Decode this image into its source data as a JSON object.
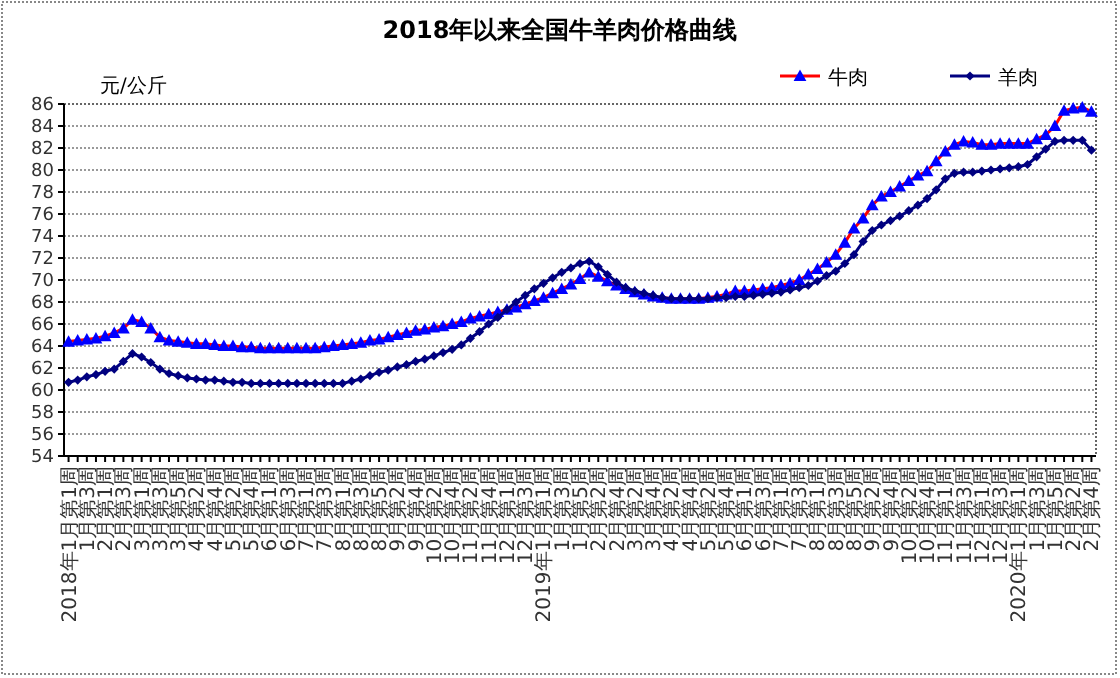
{
  "chart_data": {
    "type": "line",
    "title": "2018年以来全国牛羊肉价格曲线",
    "ylabel": "元/公斤",
    "categories": [
      "2018年1月第1周",
      null,
      "1月第3周",
      null,
      "2月第1周",
      null,
      "2月第3周",
      null,
      "3月第1周",
      null,
      "3月第3周",
      null,
      "3月第5周",
      null,
      "4月第2周",
      null,
      "4月第4周",
      null,
      "5月第2周",
      null,
      "5月第4周",
      null,
      "6月第1周",
      null,
      "6月第3周",
      null,
      "7月第1周",
      null,
      "7月第3周",
      null,
      "8月第1周",
      null,
      "8月第3周",
      null,
      "8月第5周",
      null,
      "9月第2周",
      null,
      "9月第4周",
      null,
      "10月第2周",
      null,
      "10月第4周",
      null,
      "11月第2周",
      null,
      "11月第4周",
      null,
      "12月第1周",
      null,
      "12月第3周",
      null,
      "2019年1月第1周",
      null,
      "1月第3周",
      null,
      "1月第5周",
      null,
      "2月第2周",
      null,
      "2月第4周",
      null,
      "3月第2周",
      null,
      "3月第4周",
      null,
      "4月第2周",
      null,
      "4月第4周",
      null,
      "5月第2周",
      null,
      "5月第4周",
      null,
      "6月第1周",
      null,
      "6月第3周",
      null,
      "7月第1周",
      null,
      "7月第3周",
      null,
      "8月第1周",
      null,
      "8月第3周",
      null,
      "8月第5周",
      null,
      "9月第2周",
      null,
      "9月第4周",
      null,
      "10月第2周",
      null,
      "10月第4周",
      null,
      "11月第1周",
      null,
      "11月第3周",
      null,
      "12月第1周",
      null,
      "12月第3周",
      null,
      "2020年1月第1周",
      null,
      "1月第3周",
      null,
      "1月第5周",
      null,
      "2月第2周",
      null,
      "2月第4周"
    ],
    "ylim": [
      54,
      86
    ],
    "yticks": [
      54,
      56,
      58,
      60,
      62,
      64,
      66,
      68,
      70,
      72,
      74,
      76,
      78,
      80,
      82,
      84,
      86
    ],
    "grid": "y",
    "legend": "top right",
    "line_style": "solid",
    "series": [
      {
        "name": "牛肉",
        "color": "#ff0000",
        "marker": "triangle",
        "colors": [
          "#0000ff",
          "#0000ff",
          "#0000ff",
          "#0000ff",
          "#0000ff",
          "#0000ff",
          "#0000ff",
          "#0000ff",
          "#0000ff",
          "#0000ff",
          "#0000ff",
          "#0000ff",
          "#0000ff",
          "#0000ff",
          "#0000ff",
          "#0000ff",
          "#0000ff",
          "#0000ff",
          "#0000ff",
          "#0000ff",
          "#0000ff",
          "#0000ff",
          "#0000ff",
          "#0000ff",
          "#0000ff",
          "#0000ff",
          "#0000ff",
          "#0000ff",
          "#0000ff",
          "#0000ff",
          "#0000ff",
          "#0000ff",
          "#0000ff",
          "#0000ff",
          "#0000ff",
          "#0000ff",
          "#0000ff",
          "#0000ff",
          "#0000ff",
          "#0000ff",
          "#0000ff",
          "#0000ff",
          "#0000ff",
          "#0000ff",
          "#0000ff",
          "#0000ff",
          "#0000ff",
          "#0000ff",
          "#0000ff",
          "#0000ff",
          "#0000ff",
          "#0000ff",
          "#0000ff",
          "#0000ff",
          "#0000ff",
          "#0000ff",
          "#0000ff",
          "#0000ff",
          "#0000ff",
          "#0000ff",
          "#0000ff",
          "#0000ff",
          "#0000ff",
          "#0000ff",
          "#0000ff",
          "#0000ff",
          "#0000ff",
          "#0000ff",
          "#0000ff",
          "#0000ff",
          "#0000ff",
          "#0000ff",
          "#0000ff",
          "#0000ff",
          "#0000ff",
          "#0000ff",
          "#0000ff",
          "#0000ff",
          "#0000ff",
          "#0000ff",
          "#0000ff",
          "#0000ff",
          "#0000ff",
          "#0000ff",
          "#0000ff",
          "#0000ff",
          "#0000ff",
          "#0000ff",
          "#0000ff",
          "#0000ff",
          "#0000ff",
          "#0000ff",
          "#0000ff",
          "#0000ff",
          "#0000ff",
          "#0000ff",
          "#0000ff",
          "#0000ff",
          "#0000ff",
          "#0000ff",
          "#0000ff",
          "#0000ff",
          "#0000ff",
          "#0000ff",
          "#0000ff",
          "#0000ff",
          "#0000ff",
          "#0000ff",
          "#0000ff",
          "#0000ff",
          "#0000ff",
          "#0000ff",
          "#0000ff"
        ],
        "values": [
          64.4,
          64.5,
          64.6,
          64.7,
          64.9,
          65.2,
          65.6,
          66.4,
          66.2,
          65.6,
          64.8,
          64.5,
          64.4,
          64.3,
          64.2,
          64.2,
          64.1,
          64.0,
          64.0,
          63.9,
          63.9,
          63.8,
          63.8,
          63.8,
          63.8,
          63.8,
          63.8,
          63.8,
          63.9,
          64.0,
          64.1,
          64.2,
          64.3,
          64.5,
          64.6,
          64.8,
          65.0,
          65.2,
          65.4,
          65.5,
          65.7,
          65.8,
          66.0,
          66.2,
          66.5,
          66.7,
          66.9,
          67.1,
          67.3,
          67.5,
          67.8,
          68.1,
          68.4,
          68.8,
          69.2,
          69.6,
          70.1,
          70.7,
          70.3,
          69.9,
          69.5,
          69.2,
          68.9,
          68.7,
          68.5,
          68.4,
          68.3,
          68.3,
          68.3,
          68.3,
          68.4,
          68.5,
          68.7,
          69.0,
          69.0,
          69.1,
          69.2,
          69.3,
          69.5,
          69.7,
          70.0,
          70.5,
          71.0,
          71.6,
          72.3,
          73.4,
          74.7,
          75.6,
          76.8,
          77.6,
          78.0,
          78.5,
          79.0,
          79.5,
          79.9,
          80.8,
          81.7,
          82.3,
          82.6,
          82.5,
          82.3,
          82.3,
          82.4,
          82.4,
          82.4,
          82.4,
          82.8,
          83.2,
          84.0,
          85.4,
          85.6,
          85.7,
          85.3
        ]
      },
      {
        "name": "羊肉",
        "color": "#000080",
        "marker": "diamond",
        "values": [
          60.7,
          60.9,
          61.2,
          61.4,
          61.7,
          61.9,
          62.6,
          63.3,
          63.0,
          62.5,
          61.9,
          61.5,
          61.3,
          61.1,
          61.0,
          60.9,
          60.9,
          60.8,
          60.7,
          60.7,
          60.6,
          60.6,
          60.6,
          60.6,
          60.6,
          60.6,
          60.6,
          60.6,
          60.6,
          60.6,
          60.6,
          60.8,
          61.0,
          61.3,
          61.6,
          61.8,
          62.1,
          62.3,
          62.6,
          62.8,
          63.1,
          63.4,
          63.7,
          64.1,
          64.7,
          65.3,
          66.0,
          66.6,
          67.3,
          68.0,
          68.6,
          69.2,
          69.7,
          70.2,
          70.7,
          71.1,
          71.5,
          71.7,
          71.2,
          70.5,
          69.8,
          69.3,
          69.0,
          68.8,
          68.6,
          68.4,
          68.3,
          68.3,
          68.3,
          68.3,
          68.3,
          68.4,
          68.4,
          68.5,
          68.5,
          68.6,
          68.7,
          68.8,
          68.9,
          69.1,
          69.3,
          69.5,
          69.9,
          70.4,
          70.8,
          71.5,
          72.3,
          73.5,
          74.5,
          75.0,
          75.4,
          75.8,
          76.3,
          76.8,
          77.4,
          78.2,
          79.2,
          79.7,
          79.8,
          79.8,
          79.9,
          80.0,
          80.1,
          80.2,
          80.3,
          80.5,
          81.2,
          81.9,
          82.6,
          82.7,
          82.7,
          82.7,
          81.8
        ]
      }
    ]
  }
}
